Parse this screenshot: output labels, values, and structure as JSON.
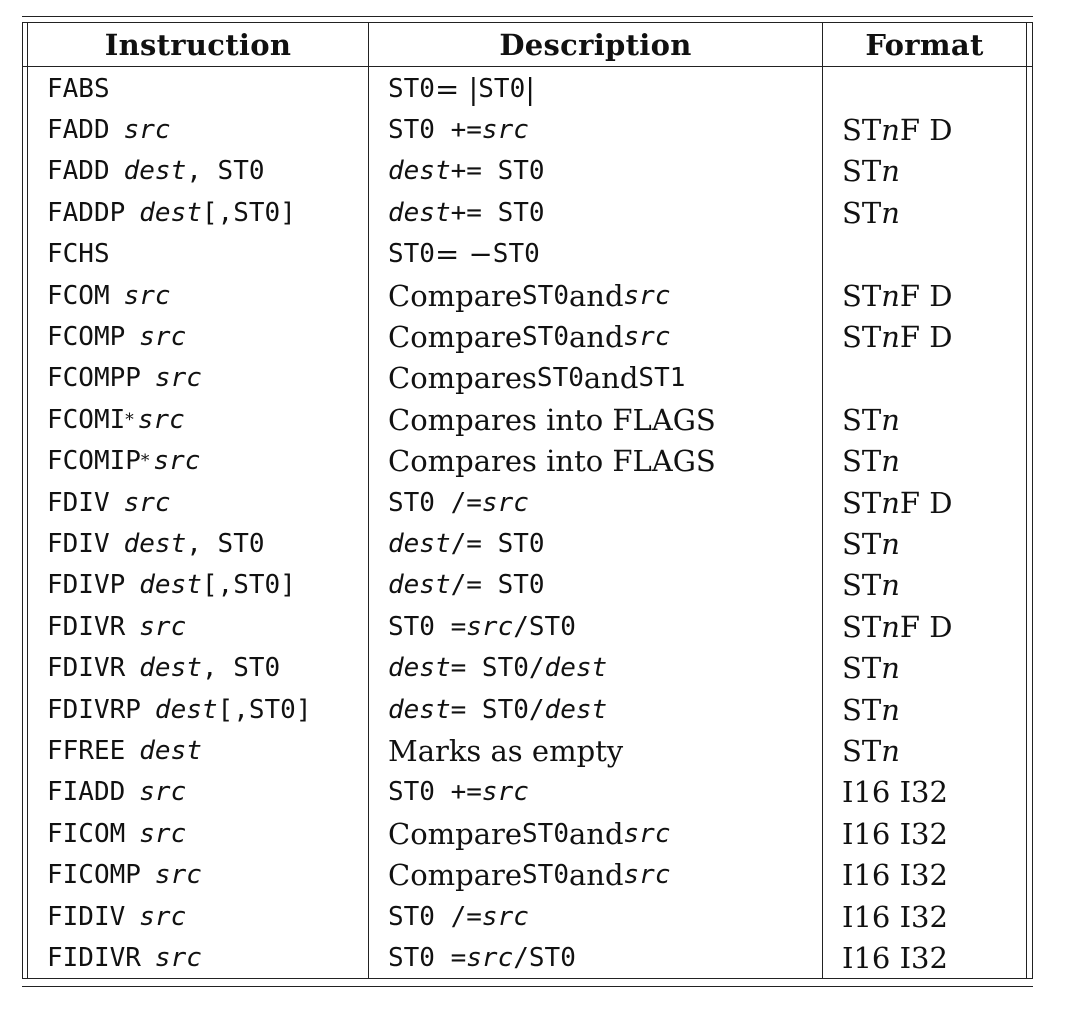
{
  "table": {
    "headers": [
      "Instruction",
      "Description",
      "Format"
    ],
    "rows": [
      {
        "instruction": [
          {
            "t": "FABS",
            "s": "tt"
          }
        ],
        "description": [
          {
            "t": "ST0",
            "s": "tt"
          },
          {
            "t": " = |",
            "s": "rm"
          },
          {
            "t": "ST0",
            "s": "tt"
          },
          {
            "t": "|",
            "s": "rm"
          }
        ],
        "format": []
      },
      {
        "instruction": [
          {
            "t": "FADD",
            "s": "tt"
          },
          {
            "t": "src",
            "s": "tti"
          }
        ],
        "description": [
          {
            "t": "ST0 += ",
            "s": "tt"
          },
          {
            "t": "src",
            "s": "tti"
          }
        ],
        "format": [
          {
            "t": "ST",
            "s": "rm"
          },
          {
            "t": "n",
            "s": "rmi"
          },
          {
            "t": " F D",
            "s": "rm"
          }
        ]
      },
      {
        "instruction": [
          {
            "t": "FADD",
            "s": "tt"
          },
          {
            "t": "dest",
            "s": "tti"
          },
          {
            "t": ", ST0",
            "s": "tt"
          }
        ],
        "description": [
          {
            "t": "dest",
            "s": "tti"
          },
          {
            "t": " += ST0",
            "s": "tt"
          }
        ],
        "format": [
          {
            "t": "ST",
            "s": "rm"
          },
          {
            "t": "n",
            "s": "rmi"
          }
        ]
      },
      {
        "instruction": [
          {
            "t": "FADDP",
            "s": "tt"
          },
          {
            "t": "dest",
            "s": "tti"
          },
          {
            "t": "[,ST0]",
            "s": "tt"
          }
        ],
        "description": [
          {
            "t": "dest",
            "s": "tti"
          },
          {
            "t": " += ST0",
            "s": "tt"
          }
        ],
        "format": [
          {
            "t": "ST",
            "s": "rm"
          },
          {
            "t": "n",
            "s": "rmi"
          }
        ]
      },
      {
        "instruction": [
          {
            "t": "FCHS",
            "s": "tt"
          }
        ],
        "description": [
          {
            "t": "ST0",
            "s": "tt"
          },
          {
            "t": " = −",
            "s": "rm"
          },
          {
            "t": "ST0",
            "s": "tt"
          }
        ],
        "format": []
      },
      {
        "instruction": [
          {
            "t": "FCOM",
            "s": "tt"
          },
          {
            "t": "src",
            "s": "tti"
          }
        ],
        "description": [
          {
            "t": "Compare ",
            "s": "rm"
          },
          {
            "t": "ST0",
            "s": "tt"
          },
          {
            "t": " and ",
            "s": "rm"
          },
          {
            "t": "src",
            "s": "tti"
          }
        ],
        "format": [
          {
            "t": "ST",
            "s": "rm"
          },
          {
            "t": "n",
            "s": "rmi"
          },
          {
            "t": " F D",
            "s": "rm"
          }
        ]
      },
      {
        "instruction": [
          {
            "t": "FCOMP",
            "s": "tt"
          },
          {
            "t": "src",
            "s": "tti"
          }
        ],
        "description": [
          {
            "t": "Compare ",
            "s": "rm"
          },
          {
            "t": "ST0",
            "s": "tt"
          },
          {
            "t": " and ",
            "s": "rm"
          },
          {
            "t": "src",
            "s": "tti"
          }
        ],
        "format": [
          {
            "t": "ST",
            "s": "rm"
          },
          {
            "t": "n",
            "s": "rmi"
          },
          {
            "t": " F D",
            "s": "rm"
          }
        ]
      },
      {
        "instruction": [
          {
            "t": "FCOMPP",
            "s": "tt"
          },
          {
            "t": "src",
            "s": "tti"
          }
        ],
        "description": [
          {
            "t": "Compares ",
            "s": "rm"
          },
          {
            "t": "ST0",
            "s": "tt"
          },
          {
            "t": " and ",
            "s": "rm"
          },
          {
            "t": "ST1",
            "s": "tt"
          }
        ],
        "format": []
      },
      {
        "instruction": [
          {
            "t": "FCOMI",
            "s": "tt"
          },
          {
            "t": "*",
            "s": "sup"
          },
          {
            "t": "src",
            "s": "tti"
          }
        ],
        "description": [
          {
            "t": "Compares into FLAGS",
            "s": "rm"
          }
        ],
        "format": [
          {
            "t": "ST",
            "s": "rm"
          },
          {
            "t": "n",
            "s": "rmi"
          }
        ]
      },
      {
        "instruction": [
          {
            "t": "FCOMIP",
            "s": "tt"
          },
          {
            "t": "*",
            "s": "sup"
          },
          {
            "t": "src",
            "s": "tti"
          }
        ],
        "description": [
          {
            "t": "Compares into FLAGS",
            "s": "rm"
          }
        ],
        "format": [
          {
            "t": "ST",
            "s": "rm"
          },
          {
            "t": "n",
            "s": "rmi"
          }
        ]
      },
      {
        "instruction": [
          {
            "t": "FDIV",
            "s": "tt"
          },
          {
            "t": "src",
            "s": "tti"
          }
        ],
        "description": [
          {
            "t": "ST0 /= ",
            "s": "tt"
          },
          {
            "t": "src",
            "s": "tti"
          }
        ],
        "format": [
          {
            "t": "ST",
            "s": "rm"
          },
          {
            "t": "n",
            "s": "rmi"
          },
          {
            "t": " F D",
            "s": "rm"
          }
        ]
      },
      {
        "instruction": [
          {
            "t": "FDIV",
            "s": "tt"
          },
          {
            "t": "dest",
            "s": "tti"
          },
          {
            "t": ", ST0",
            "s": "tt"
          }
        ],
        "description": [
          {
            "t": "dest",
            "s": "tti"
          },
          {
            "t": " /= ST0",
            "s": "tt"
          }
        ],
        "format": [
          {
            "t": "ST",
            "s": "rm"
          },
          {
            "t": "n",
            "s": "rmi"
          }
        ]
      },
      {
        "instruction": [
          {
            "t": "FDIVP",
            "s": "tt"
          },
          {
            "t": "dest",
            "s": "tti"
          },
          {
            "t": "[,ST0]",
            "s": "tt"
          }
        ],
        "description": [
          {
            "t": "dest",
            "s": "tti"
          },
          {
            "t": " /= ST0",
            "s": "tt"
          }
        ],
        "format": [
          {
            "t": "ST",
            "s": "rm"
          },
          {
            "t": "n",
            "s": "rmi"
          }
        ]
      },
      {
        "instruction": [
          {
            "t": "FDIVR",
            "s": "tt"
          },
          {
            "t": "src",
            "s": "tti"
          }
        ],
        "description": [
          {
            "t": "ST0 = ",
            "s": "tt"
          },
          {
            "t": "src",
            "s": "tti"
          },
          {
            "t": "/ST0",
            "s": "tt"
          }
        ],
        "format": [
          {
            "t": "ST",
            "s": "rm"
          },
          {
            "t": "n",
            "s": "rmi"
          },
          {
            "t": " F D",
            "s": "rm"
          }
        ]
      },
      {
        "instruction": [
          {
            "t": "FDIVR",
            "s": "tt"
          },
          {
            "t": "dest",
            "s": "tti"
          },
          {
            "t": ", ST0",
            "s": "tt"
          }
        ],
        "description": [
          {
            "t": "dest",
            "s": "tti"
          },
          {
            "t": " = ST0/",
            "s": "tt"
          },
          {
            "t": "dest",
            "s": "tti"
          }
        ],
        "format": [
          {
            "t": "ST",
            "s": "rm"
          },
          {
            "t": "n",
            "s": "rmi"
          }
        ]
      },
      {
        "instruction": [
          {
            "t": "FDIVRP",
            "s": "tt"
          },
          {
            "t": "dest",
            "s": "tti"
          },
          {
            "t": "[,ST0]",
            "s": "tt"
          }
        ],
        "description": [
          {
            "t": "dest",
            "s": "tti"
          },
          {
            "t": " = ST0/",
            "s": "tt"
          },
          {
            "t": "dest",
            "s": "tti"
          }
        ],
        "format": [
          {
            "t": "ST",
            "s": "rm"
          },
          {
            "t": "n",
            "s": "rmi"
          }
        ]
      },
      {
        "instruction": [
          {
            "t": "FFREE",
            "s": "tt"
          },
          {
            "t": "dest",
            "s": "tti"
          }
        ],
        "description": [
          {
            "t": "Marks as empty",
            "s": "rm"
          }
        ],
        "format": [
          {
            "t": "ST",
            "s": "rm"
          },
          {
            "t": "n",
            "s": "rmi"
          }
        ]
      },
      {
        "instruction": [
          {
            "t": "FIADD",
            "s": "tt"
          },
          {
            "t": "src",
            "s": "tti"
          }
        ],
        "description": [
          {
            "t": "ST0 += ",
            "s": "tt"
          },
          {
            "t": "src",
            "s": "tti"
          }
        ],
        "format": [
          {
            "t": "I16 I32",
            "s": "rm"
          }
        ]
      },
      {
        "instruction": [
          {
            "t": "FICOM",
            "s": "tt"
          },
          {
            "t": "src",
            "s": "tti"
          }
        ],
        "description": [
          {
            "t": "Compare ",
            "s": "rm"
          },
          {
            "t": "ST0",
            "s": "tt"
          },
          {
            "t": " and ",
            "s": "rm"
          },
          {
            "t": "src",
            "s": "tti"
          }
        ],
        "format": [
          {
            "t": "I16 I32",
            "s": "rm"
          }
        ]
      },
      {
        "instruction": [
          {
            "t": "FICOMP",
            "s": "tt"
          },
          {
            "t": "src",
            "s": "tti"
          }
        ],
        "description": [
          {
            "t": "Compare ",
            "s": "rm"
          },
          {
            "t": "ST0",
            "s": "tt"
          },
          {
            "t": " and ",
            "s": "rm"
          },
          {
            "t": "src",
            "s": "tti"
          }
        ],
        "format": [
          {
            "t": "I16 I32",
            "s": "rm"
          }
        ]
      },
      {
        "instruction": [
          {
            "t": "FIDIV",
            "s": "tt"
          },
          {
            "t": "src",
            "s": "tti"
          }
        ],
        "description": [
          {
            "t": "ST0 /= ",
            "s": "tt"
          },
          {
            "t": "src",
            "s": "tti"
          }
        ],
        "format": [
          {
            "t": "I16 I32",
            "s": "rm"
          }
        ]
      },
      {
        "instruction": [
          {
            "t": "FIDIVR",
            "s": "tt"
          },
          {
            "t": "src",
            "s": "tti"
          }
        ],
        "description": [
          {
            "t": "ST0 = ",
            "s": "tt"
          },
          {
            "t": "src",
            "s": "tti"
          },
          {
            "t": "/ST0",
            "s": "tt"
          }
        ],
        "format": [
          {
            "t": "I16 I32",
            "s": "rm"
          }
        ]
      }
    ]
  }
}
